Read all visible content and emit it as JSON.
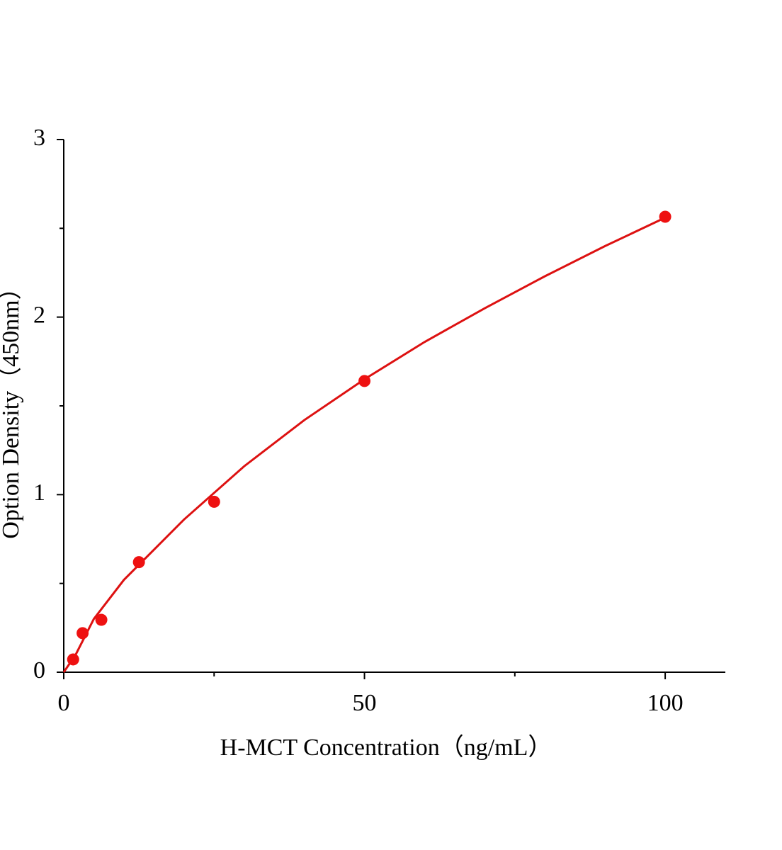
{
  "chart_data": {
    "type": "scatter",
    "x_label": "H-MCT Concentration（ng/mL）",
    "y_label": "Option Density（450nm）",
    "xlim": [
      0,
      110
    ],
    "ylim": [
      0,
      3
    ],
    "xticks": [
      0,
      50,
      100
    ],
    "yticks": [
      0,
      1,
      2,
      3
    ],
    "xminorticks": [
      25,
      75
    ],
    "yminorticks": [
      0.5,
      1.5,
      2.5
    ],
    "series": [
      {
        "name": "Standard",
        "color": "#ee1111",
        "x": [
          1.56,
          3.13,
          6.25,
          12.5,
          25,
          50,
          100
        ],
        "values": [
          0.072,
          0.22,
          0.295,
          0.62,
          0.96,
          1.64,
          2.565
        ]
      },
      {
        "name": "Fit",
        "color": "#dd1111",
        "x": [
          0,
          2,
          5,
          10,
          20,
          30,
          40,
          50,
          60,
          70,
          80,
          90,
          100
        ],
        "values": [
          0,
          0.1,
          0.3,
          0.52,
          0.86,
          1.16,
          1.42,
          1.65,
          1.86,
          2.05,
          2.23,
          2.4,
          2.56
        ]
      }
    ]
  }
}
